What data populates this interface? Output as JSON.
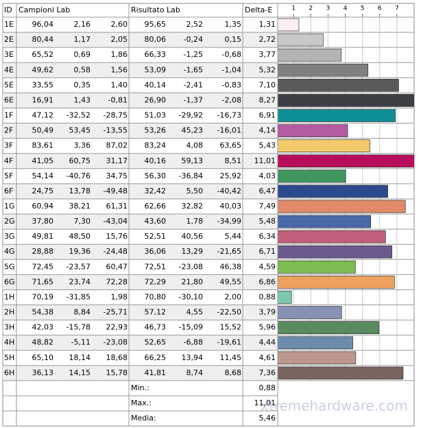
{
  "table": {
    "headers": [
      "ID",
      "Campioni Lab",
      "Risultato Lab",
      "Delta-E"
    ],
    "rows": [
      {
        "id": "1E",
        "sample": [
          "96,04",
          "2,16",
          "2,60"
        ],
        "result": [
          "95,65",
          "2,52",
          "1,35"
        ],
        "delta": {
          "value": 1.31,
          "label": "1,31"
        },
        "color": "#fbeef0"
      },
      {
        "id": "2E",
        "sample": [
          "80,44",
          "1,17",
          "2,05"
        ],
        "result": [
          "80,06",
          "-0,24",
          "0,15"
        ],
        "delta": {
          "value": 2.72,
          "label": "2,72"
        },
        "color": "#c8c8c8"
      },
      {
        "id": "3E",
        "sample": [
          "65,52",
          "0,69",
          "1,86"
        ],
        "result": [
          "66,33",
          "-1,25",
          "-0,68"
        ],
        "delta": {
          "value": 3.77,
          "label": "3,77"
        },
        "color": "#b4b4b4"
      },
      {
        "id": "4E",
        "sample": [
          "49,62",
          "0,58",
          "1,56"
        ],
        "result": [
          "53,09",
          "-1,65",
          "-1,04"
        ],
        "delta": {
          "value": 5.32,
          "label": "5,32"
        },
        "color": "#808080"
      },
      {
        "id": "5E",
        "sample": [
          "33,55",
          "0,35",
          "1,40"
        ],
        "result": [
          "40,14",
          "-2,41",
          "-0,83"
        ],
        "delta": {
          "value": 7.1,
          "label": "7,10"
        },
        "color": "#5a5a5a"
      },
      {
        "id": "6E",
        "sample": [
          "16,91",
          "1,43",
          "-0,81"
        ],
        "result": [
          "26,90",
          "-1,37",
          "-2,08"
        ],
        "delta": {
          "value": 8.27,
          "label": "8,27"
        },
        "color": "#3c3f44"
      },
      {
        "id": "1F",
        "sample": [
          "47,12",
          "-32,52",
          "-28,75"
        ],
        "result": [
          "51,03",
          "-29,92",
          "-16,73"
        ],
        "delta": {
          "value": 6.91,
          "label": "6,91"
        },
        "color": "#0e8f96"
      },
      {
        "id": "2F",
        "sample": [
          "50,49",
          "53,45",
          "-13,55"
        ],
        "result": [
          "53,26",
          "45,23",
          "-16,01"
        ],
        "delta": {
          "value": 4.14,
          "label": "4,14"
        },
        "color": "#b45aa0"
      },
      {
        "id": "3F",
        "sample": [
          "83,61",
          "3,36",
          "87,02"
        ],
        "result": [
          "83,24",
          "4,08",
          "63,65"
        ],
        "delta": {
          "value": 5.43,
          "label": "5,43"
        },
        "color": "#f4c96a"
      },
      {
        "id": "4F",
        "sample": [
          "41,05",
          "60,75",
          "31,17"
        ],
        "result": [
          "40,16",
          "59,13",
          "8,51"
        ],
        "delta": {
          "value": 11.01,
          "label": "11,01"
        },
        "color": "#b80d5a"
      },
      {
        "id": "5F",
        "sample": [
          "54,14",
          "-40,76",
          "34,75"
        ],
        "result": [
          "56,30",
          "-36,84",
          "25,92"
        ],
        "delta": {
          "value": 4.03,
          "label": "4,03"
        },
        "color": "#3f9660"
      },
      {
        "id": "6F",
        "sample": [
          "24,75",
          "13,78",
          "-49,48"
        ],
        "result": [
          "32,42",
          "5,50",
          "-40,42"
        ],
        "delta": {
          "value": 6.47,
          "label": "6,47"
        },
        "color": "#2c4a8e"
      },
      {
        "id": "1G",
        "sample": [
          "60,94",
          "38,21",
          "61,31"
        ],
        "result": [
          "62,66",
          "32,82",
          "40,03"
        ],
        "delta": {
          "value": 7.49,
          "label": "7,49"
        },
        "color": "#e08a6a"
      },
      {
        "id": "2G",
        "sample": [
          "37,80",
          "7,30",
          "-43,04"
        ],
        "result": [
          "43,60",
          "1,78",
          "-34,99"
        ],
        "delta": {
          "value": 5.48,
          "label": "5,48"
        },
        "color": "#4868a8"
      },
      {
        "id": "3G",
        "sample": [
          "49,81",
          "48,50",
          "15,76"
        ],
        "result": [
          "52,51",
          "40,56",
          "5,44"
        ],
        "delta": {
          "value": 6.34,
          "label": "6,34"
        },
        "color": "#c0607a"
      },
      {
        "id": "4G",
        "sample": [
          "28,88",
          "19,36",
          "-24,48"
        ],
        "result": [
          "36,06",
          "13,29",
          "-21,65"
        ],
        "delta": {
          "value": 6.71,
          "label": "6,71"
        },
        "color": "#6a5a8e"
      },
      {
        "id": "5G",
        "sample": [
          "72,45",
          "-23,57",
          "60,47"
        ],
        "result": [
          "72,51",
          "-23,08",
          "46,38"
        ],
        "delta": {
          "value": 4.59,
          "label": "4,59"
        },
        "color": "#7cbc50"
      },
      {
        "id": "6G",
        "sample": [
          "71,65",
          "23,74",
          "72,28"
        ],
        "result": [
          "72,29",
          "21,80",
          "49,55"
        ],
        "delta": {
          "value": 6.86,
          "label": "6,86"
        },
        "color": "#eca25e"
      },
      {
        "id": "1H",
        "sample": [
          "70,19",
          "-31,85",
          "1,98"
        ],
        "result": [
          "70,80",
          "-30,10",
          "2,00"
        ],
        "delta": {
          "value": 0.88,
          "label": "0,88"
        },
        "color": "#7cc8b0"
      },
      {
        "id": "2H",
        "sample": [
          "54,38",
          "8,84",
          "-25,71"
        ],
        "result": [
          "57,12",
          "4,55",
          "-22,50"
        ],
        "delta": {
          "value": 3.79,
          "label": "3,79"
        },
        "color": "#8890b4"
      },
      {
        "id": "3H",
        "sample": [
          "42,03",
          "-15,78",
          "22,93"
        ],
        "result": [
          "46,73",
          "-15,09",
          "15,52"
        ],
        "delta": {
          "value": 5.96,
          "label": "5,96"
        },
        "color": "#5a8a60"
      },
      {
        "id": "4H",
        "sample": [
          "48,82",
          "-5,11",
          "-23,08"
        ],
        "result": [
          "52,65",
          "-6,88",
          "-19,61"
        ],
        "delta": {
          "value": 4.44,
          "label": "4,44"
        },
        "color": "#6c8cac"
      },
      {
        "id": "5H",
        "sample": [
          "65,10",
          "18,14",
          "18,68"
        ],
        "result": [
          "66,25",
          "13,94",
          "11,45"
        ],
        "delta": {
          "value": 4.61,
          "label": "4,61"
        },
        "color": "#bc9890"
      },
      {
        "id": "6H",
        "sample": [
          "36,13",
          "14,15",
          "15,78"
        ],
        "result": [
          "41,81",
          "8,74",
          "8,68"
        ],
        "delta": {
          "value": 7.36,
          "label": "7,36"
        },
        "color": "#7a6460"
      }
    ],
    "footer": [
      {
        "label": "Min.:",
        "value": "0,88"
      },
      {
        "label": "Max.:",
        "value": "11,01"
      },
      {
        "label": "Media:",
        "value": "5,46"
      }
    ]
  },
  "chart": {
    "xlim": [
      0,
      8
    ],
    "xticks": [
      1,
      2,
      3,
      4,
      5,
      6,
      7
    ]
  },
  "watermark": "xtremehardware.com"
}
